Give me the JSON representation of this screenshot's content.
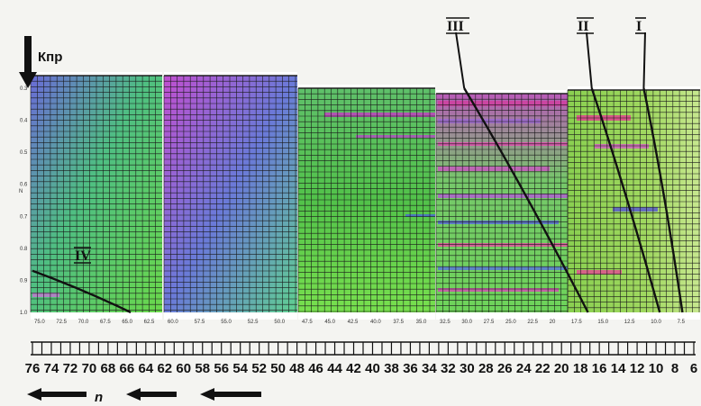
{
  "chart_data": {
    "type": "line",
    "y_axis_label": "Кпр",
    "y_axis_side_label": "N",
    "y_ticks": [
      "0.3",
      "0.4",
      "0.5",
      "0.6",
      "0.7",
      "0.8",
      "0.9",
      "1.0"
    ],
    "x_axis_label": "n",
    "x_ticks_bottom": [
      "76",
      "74",
      "72",
      "70",
      "68",
      "66",
      "64",
      "62",
      "60",
      "58",
      "56",
      "54",
      "52",
      "50",
      "48",
      "46",
      "44",
      "42",
      "40",
      "38",
      "36",
      "34",
      "32",
      "30",
      "28",
      "26",
      "24",
      "22",
      "20",
      "18",
      "16",
      "14",
      "12",
      "10",
      "8",
      "6"
    ],
    "panels": [
      {
        "ticks": [
          "75.0",
          "72.5",
          "70.0",
          "67.5",
          "65.0",
          "62.5"
        ]
      },
      {
        "ticks": [
          "60.0",
          "57.5",
          "55.0",
          "52.5",
          "50.0"
        ]
      },
      {
        "ticks": [
          "47.5",
          "45.0",
          "42.5",
          "40.0",
          "37.5",
          "35.0"
        ]
      },
      {
        "ticks": [
          "32.5",
          "30.0",
          "27.5",
          "25.0",
          "22.5",
          "20"
        ]
      },
      {
        "ticks": [
          "17.5",
          "15.0",
          "12.5",
          "10.0",
          "7.5"
        ]
      }
    ],
    "series": [
      {
        "name": "I",
        "points": [
          [
            11.3,
            0.3
          ],
          [
            9.2,
            0.6
          ],
          [
            7.2,
            1.0
          ]
        ]
      },
      {
        "name": "II",
        "points": [
          [
            16.8,
            0.3
          ],
          [
            13.4,
            0.6
          ],
          [
            9.6,
            1.0
          ]
        ]
      },
      {
        "name": "III",
        "points": [
          [
            30.3,
            0.3
          ],
          [
            24.2,
            0.6
          ],
          [
            17.2,
            1.0
          ]
        ]
      },
      {
        "name": "IV",
        "points": [
          [
            76.0,
            0.87
          ],
          [
            70.5,
            0.93
          ],
          [
            65.6,
            1.0
          ]
        ]
      }
    ],
    "colors": {
      "curve": "#111111",
      "grid": "#1a1a1a"
    }
  }
}
